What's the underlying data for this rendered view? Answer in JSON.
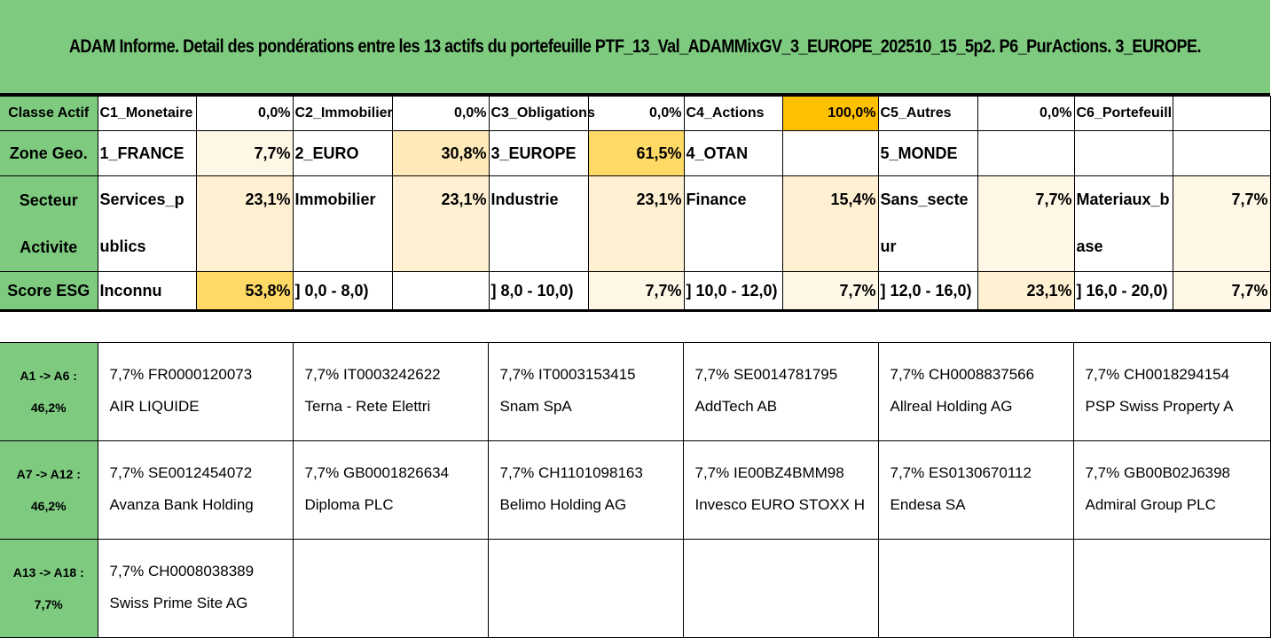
{
  "title": "ADAM Informe. Detail des pondérations entre les 13 actifs du portefeuille PTF_13_Val_ADAMMixGV_3_EUROPE_202510_15_5p2. P6_PurActions. 3_EUROPE.",
  "colors": {
    "header_green": "#7ECB80",
    "highlight_orange": "#FFC000",
    "heat_levels": [
      "#FFFFFF",
      "#FFF7E6",
      "#FFF0D2",
      "#FFE9B8",
      "#FFD966",
      "#FFC000"
    ]
  },
  "rows": [
    {
      "header": "Classe Actif",
      "cells": [
        {
          "label": "C1_Monetaire",
          "value": "0,0%"
        },
        {
          "label": "C2_Immobilier",
          "value": "0,0%"
        },
        {
          "label": "C3_Obligations",
          "value": "0,0%"
        },
        {
          "label": "C4_Actions",
          "value": "100,0%"
        },
        {
          "label": "C5_Autres",
          "value": "0,0%"
        },
        {
          "label": "C6_Portefeuill",
          "value": ""
        }
      ]
    },
    {
      "header": "Zone Geo.",
      "cells": [
        {
          "label": "1_FRANCE",
          "value": "7,7%"
        },
        {
          "label": "2_EURO",
          "value": "30,8%"
        },
        {
          "label": "3_EUROPE",
          "value": "61,5%"
        },
        {
          "label": "4_OTAN",
          "value": ""
        },
        {
          "label": "5_MONDE",
          "value": ""
        },
        {
          "label": "",
          "value": ""
        }
      ]
    },
    {
      "header": "Secteur Activite",
      "cells": [
        {
          "label": "Services_publics",
          "value": "23,1%"
        },
        {
          "label": "Immobilier",
          "value": "23,1%"
        },
        {
          "label": "Industrie",
          "value": "23,1%"
        },
        {
          "label": "Finance",
          "value": "15,4%"
        },
        {
          "label": "Sans_secteur",
          "value": "7,7%"
        },
        {
          "label": "Materiaux_base",
          "value": "7,7%"
        }
      ]
    },
    {
      "header": "Score ESG",
      "cells": [
        {
          "label": "Inconnu",
          "value": "53,8%"
        },
        {
          "label": "] 0,0 - 8,0)",
          "value": ""
        },
        {
          "label": "] 8,0 - 10,0)",
          "value": "7,7%"
        },
        {
          "label": "] 10,0 - 12,0)",
          "value": "7,7%"
        },
        {
          "label": "] 12,0 - 16,0)",
          "value": "23,1%"
        },
        {
          "label": "] 16,0 - 20,0)",
          "value": "7,7%"
        }
      ]
    }
  ],
  "asset_groups": [
    {
      "label_range": "A1 -> A6 :",
      "label_total": "46,2%",
      "assets": [
        {
          "line1": "7,7% FR0000120073",
          "line2": "AIR LIQUIDE"
        },
        {
          "line1": "7,7% IT0003242622",
          "line2": "Terna - Rete Elettri"
        },
        {
          "line1": "7,7% IT0003153415",
          "line2": "Snam SpA"
        },
        {
          "line1": "7,7% SE0014781795",
          "line2": "AddTech AB"
        },
        {
          "line1": "7,7% CH0008837566",
          "line2": "Allreal Holding AG"
        },
        {
          "line1": "7,7% CH0018294154",
          "line2": "PSP Swiss Property A"
        }
      ]
    },
    {
      "label_range": "A7 -> A12 :",
      "label_total": "46,2%",
      "assets": [
        {
          "line1": "7,7% SE0012454072",
          "line2": "Avanza Bank Holding"
        },
        {
          "line1": "7,7% GB0001826634",
          "line2": "Diploma PLC"
        },
        {
          "line1": "7,7% CH1101098163",
          "line2": "Belimo Holding AG"
        },
        {
          "line1": "7,7% IE00BZ4BMM98",
          "line2": "Invesco EURO STOXX H"
        },
        {
          "line1": "7,7% ES0130670112",
          "line2": "Endesa SA"
        },
        {
          "line1": "7,7% GB00B02J6398",
          "line2": "Admiral Group PLC"
        }
      ]
    },
    {
      "label_range": "A13 -> A18 :",
      "label_total": "7,7%",
      "assets": [
        {
          "line1": "7,7% CH0008038389",
          "line2": "Swiss Prime Site AG"
        },
        {
          "line1": "",
          "line2": ""
        },
        {
          "line1": "",
          "line2": ""
        },
        {
          "line1": "",
          "line2": ""
        },
        {
          "line1": "",
          "line2": ""
        },
        {
          "line1": "",
          "line2": ""
        }
      ]
    }
  ]
}
